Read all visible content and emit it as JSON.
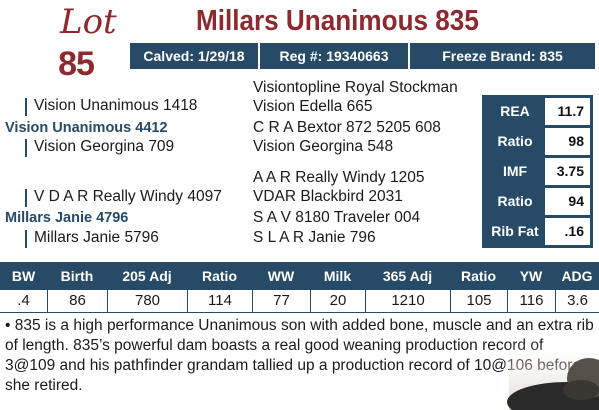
{
  "lot": {
    "word": "Lot",
    "number": "85"
  },
  "title": "Millars Unanimous 835",
  "info": {
    "calved": "Calved: 1/29/18",
    "reg": "Reg #: 19340663",
    "freeze": "Freeze Brand: 835"
  },
  "pedigree": {
    "sire": "Vision Unanimous 4412",
    "sire_sire": "Vision Unanimous 1418",
    "sire_dam": "Vision Georgina 709",
    "sss": "Visiontopline Royal Stockman",
    "ssd": "Vision Edella 665",
    "sds": "C R A Bextor 872 5205 608",
    "sdd": "Vision Georgina 548",
    "dam": "Millars Janie 4796",
    "dam_sire": "V D A R Really Windy 4097",
    "dam_dam": "Millars Janie 5796",
    "dss": "A A R Really Windy 1205",
    "dsd": "VDAR Blackbird 2031",
    "dds": "S A V 8180 Traveler 004",
    "ddd": "S L A R Janie 796"
  },
  "stats": [
    {
      "label": "REA",
      "value": "11.7"
    },
    {
      "label": "Ratio",
      "value": "98"
    },
    {
      "label": "IMF",
      "value": "3.75"
    },
    {
      "label": "Ratio",
      "value": "94"
    },
    {
      "label": "Rib Fat",
      "value": ".16"
    }
  ],
  "epd": {
    "headers": [
      "BW",
      "Birth",
      "205 Adj",
      "Ratio",
      "WW",
      "Milk",
      "365 Adj",
      "Ratio",
      "YW",
      "ADG"
    ],
    "values": [
      ".4",
      "86",
      "780",
      "114",
      "77",
      "20",
      "1210",
      "105",
      "116",
      "3.6"
    ]
  },
  "description": "• 835 is a high performance Unanimous son with added bone, muscle and an extra rib of length. 835’s powerful dam boasts a real good weaning production record of 3@109 and his pathfinder grandam tallied up a production record of 10@106 before she retired.",
  "colors": {
    "brand_red": "#8c2a2f",
    "navy": "#274a66"
  }
}
